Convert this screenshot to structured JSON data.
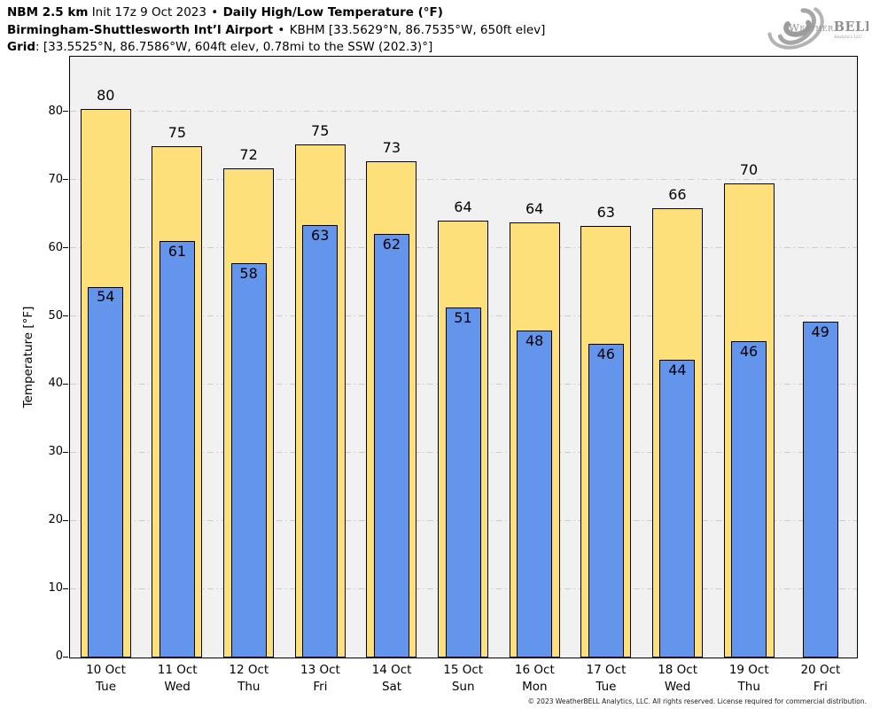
{
  "header": {
    "line1": {
      "model": "NBM 2.5 km",
      "init": "Init 17z 9 Oct 2023",
      "sep": "•",
      "product": "Daily High/Low Temperature (°F)"
    },
    "line2": {
      "station": "Birmingham-Shuttlesworth Int’l Airport",
      "sep": "•",
      "details": "KBHM [33.5629°N, 86.7535°W, 650ft elev]"
    },
    "line3": {
      "label": "Grid",
      "details": ": [33.5525°N, 86.7586°W, 604ft elev, 0.78mi to the SSW (202.3)°]"
    }
  },
  "logo": {
    "weather": "Weather",
    "bell": "BELL",
    "sub": "Analytics LLC"
  },
  "footer": "© 2023 WeatherBELL Analytics, LLC. All rights reserved. License required for commercial distribution.",
  "colors": {
    "high": "#FDE07A",
    "low": "#6495ED",
    "outline": "#000000",
    "plot_bg": "#F1F1F1",
    "grid": "#CBCBCB"
  },
  "chart_data": {
    "type": "bar",
    "title": "Daily High/Low Temperature (°F)",
    "ylabel": "Temperature [°F]",
    "ylim": [
      0,
      88
    ],
    "yticks": [
      0,
      10,
      20,
      30,
      40,
      50,
      60,
      70,
      80
    ],
    "grid": "horizontal dash-dot lines every 10°F",
    "legend": "none (yellow bars = daily high, blue bars = daily low)",
    "categories": [
      {
        "date": "10 Oct",
        "day": "Tue"
      },
      {
        "date": "11 Oct",
        "day": "Wed"
      },
      {
        "date": "12 Oct",
        "day": "Thu"
      },
      {
        "date": "13 Oct",
        "day": "Fri"
      },
      {
        "date": "14 Oct",
        "day": "Sat"
      },
      {
        "date": "15 Oct",
        "day": "Sun"
      },
      {
        "date": "16 Oct",
        "day": "Mon"
      },
      {
        "date": "17 Oct",
        "day": "Tue"
      },
      {
        "date": "18 Oct",
        "day": "Wed"
      },
      {
        "date": "19 Oct",
        "day": "Thu"
      },
      {
        "date": "20 Oct",
        "day": "Fri"
      }
    ],
    "series": [
      {
        "name": "Daily High",
        "color": "#FDE07A",
        "values": [
          80.4,
          75.0,
          71.8,
          75.3,
          72.8,
          64.1,
          63.8,
          63.3,
          65.9,
          69.6,
          null
        ],
        "labels": [
          "80",
          "75",
          "72",
          "75",
          "73",
          "64",
          "64",
          "63",
          "66",
          "70",
          null
        ]
      },
      {
        "name": "Daily Low",
        "color": "#6495ED",
        "values": [
          54.4,
          61.1,
          57.8,
          63.4,
          62.1,
          51.3,
          48.0,
          46.0,
          43.7,
          46.4,
          49.3
        ],
        "labels": [
          "54",
          "61",
          "58",
          "63",
          "62",
          "51",
          "48",
          "46",
          "44",
          "46",
          "49"
        ]
      }
    ]
  }
}
